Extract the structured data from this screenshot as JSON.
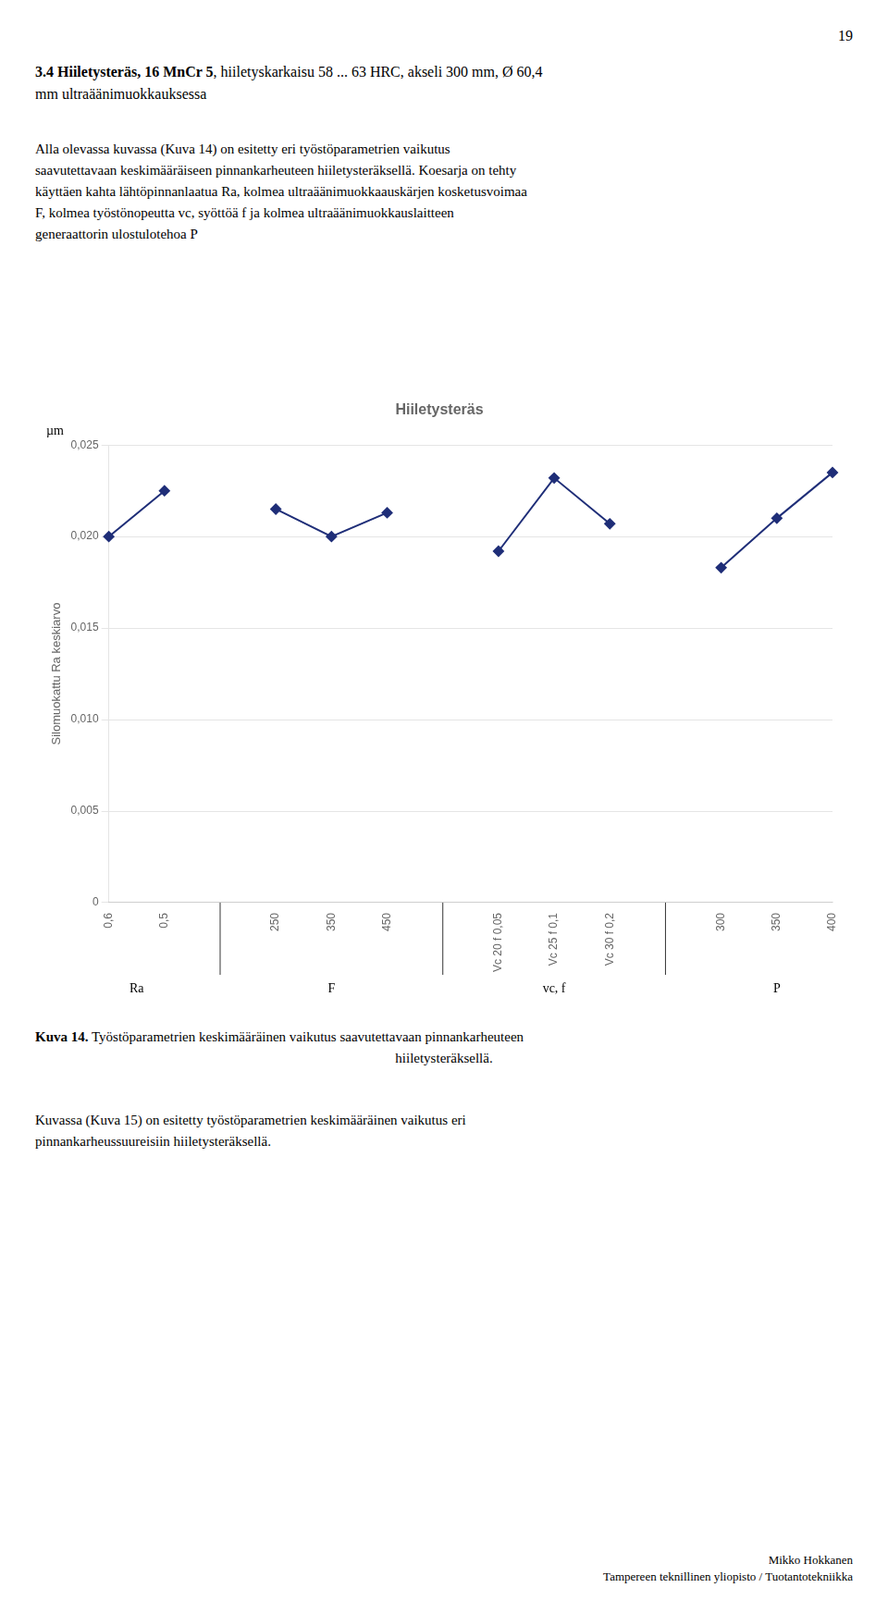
{
  "page_number": "19",
  "heading": {
    "bold": "3.4 Hiiletysteräs, 16 MnCr 5",
    "normal": ", hiiletyskarkaisu 58 ... 63 HRC, akseli 300 mm, Ø 60,4",
    "line2": "mm ultraäänimuokkauksessa"
  },
  "paragraphs": [
    [
      "Alla olevassa kuvassa (Kuva 14) on esitetty eri työstöparametrien vaikutus",
      "saavutettavaan keskimääräiseen pinnankarheuteen hiiletysteräksellä. Koesarja on tehty",
      "käyttäen kahta lähtöpinnanlaatua Ra, kolmea ultraäänimuokkaauskärjen kosketusvoimaa",
      "F, kolmea työstönopeutta vc, syöttöä f ja kolmea ultraäänimuokkauslaitteen",
      "generaattorin ulostulotehoa P"
    ],
    [
      "Kuvassa (Kuva 15) on esitetty työstöparametrien keskimääräinen vaikutus eri",
      "pinnankarheussuureisiin hiiletysteräksellä."
    ]
  ],
  "caption": {
    "bold": "Kuva 14.",
    "normal": " Työstöparametrien keskimääräinen vaikutus saavutettavaan pinnankarheuteen",
    "line2": "hiiletysteräksellä."
  },
  "footer": [
    "Mikko Hokkanen",
    "Tampereen teknillinen yliopisto / Tuotantotekniikka"
  ],
  "chart_data": {
    "type": "line",
    "title": "Hiiletysteräs",
    "ylabel": "Silomuokattu Ra keskiarvo",
    "annotations": [
      "µm"
    ],
    "group_labels": [
      "Ra",
      "F",
      "vc, f",
      "P"
    ],
    "categories": [
      "0,6",
      "0,5",
      null,
      "250",
      "350",
      "450",
      null,
      "Vc 20 f 0,05",
      "Vc 25 f 0,1",
      "Vc 30 f 0,2",
      null,
      "300",
      "350",
      "400"
    ],
    "values": [
      0.02,
      0.0225,
      null,
      0.0215,
      0.02,
      0.0213,
      null,
      0.0192,
      0.0232,
      0.0207,
      null,
      0.0183,
      0.021,
      0.0235
    ],
    "color": "#1F2E78",
    "marker": "diamond",
    "ylim": [
      0,
      0.025
    ],
    "yticks": [
      0,
      {
        "value": 0.005,
        "label": "0,005"
      },
      {
        "value": 0.01,
        "label": "0,010"
      },
      {
        "value": 0.015,
        "label": "0,015"
      },
      {
        "value": 0.02,
        "label": "0,020"
      },
      {
        "value": 0.025,
        "label": "0,025"
      }
    ],
    "grid": true
  }
}
